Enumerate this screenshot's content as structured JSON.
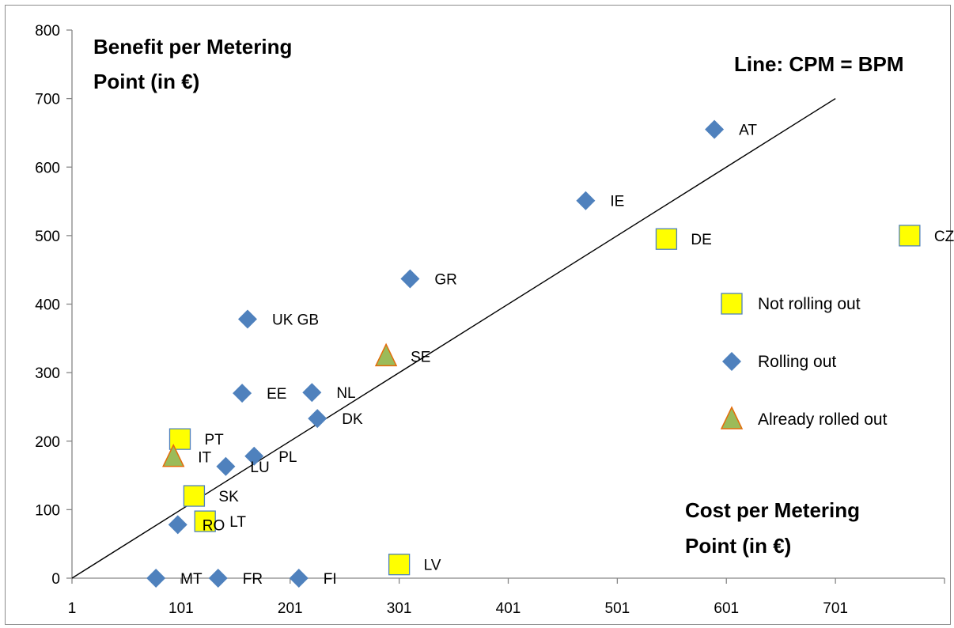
{
  "chart_data": {
    "type": "scatter",
    "y_axis_title": [
      "Benefit per Metering",
      "Point (in €)"
    ],
    "x_axis_title": [
      "Cost per Metering",
      "Point (in €)"
    ],
    "line_label": "Line: CPM = BPM",
    "x_ticks": [
      1,
      101,
      201,
      301,
      401,
      501,
      601,
      701
    ],
    "y_ticks": [
      0,
      100,
      200,
      300,
      400,
      500,
      600,
      700,
      800
    ],
    "xlim": [
      1,
      801
    ],
    "ylim": [
      0,
      800
    ],
    "reference_line": {
      "x": [
        1,
        701
      ],
      "y": [
        0,
        700
      ]
    },
    "colors": {
      "not_rolling_out": "#ffff00",
      "rolling_out": "#4f81bd",
      "already_rolled_out": "#9bbb59",
      "triangle_edge": "#e46c0a",
      "square_edge": "#4f81bd"
    },
    "legend": [
      {
        "key": "not_rolling_out",
        "label": "Not rolling out",
        "marker": "square"
      },
      {
        "key": "rolling_out",
        "label": "Rolling out",
        "marker": "diamond"
      },
      {
        "key": "already_rolled_out",
        "label": "Already rolled out",
        "marker": "triangle"
      }
    ],
    "series": [
      {
        "key": "not_rolling_out",
        "marker": "square",
        "points": [
          {
            "label": "CZ",
            "x": 769,
            "y": 500
          },
          {
            "label": "DE",
            "x": 546,
            "y": 495
          },
          {
            "label": "PT",
            "x": 100,
            "y": 203
          },
          {
            "label": "SK",
            "x": 113,
            "y": 120
          },
          {
            "label": "LT",
            "x": 123,
            "y": 83
          },
          {
            "label": "LV",
            "x": 301,
            "y": 20
          }
        ]
      },
      {
        "key": "rolling_out",
        "marker": "diamond",
        "points": [
          {
            "label": "AT",
            "x": 590,
            "y": 655
          },
          {
            "label": "IE",
            "x": 472,
            "y": 551
          },
          {
            "label": "GR",
            "x": 311,
            "y": 437
          },
          {
            "label": "UK GB",
            "x": 162,
            "y": 378
          },
          {
            "label": "EE",
            "x": 157,
            "y": 270
          },
          {
            "label": "NL",
            "x": 221,
            "y": 271
          },
          {
            "label": "DK",
            "x": 226,
            "y": 233
          },
          {
            "label": "PL",
            "x": 168,
            "y": 178
          },
          {
            "label": "LU",
            "x": 142,
            "y": 163
          },
          {
            "label": "RO",
            "x": 98,
            "y": 78
          },
          {
            "label": "MT",
            "x": 78,
            "y": 0
          },
          {
            "label": "FR",
            "x": 135,
            "y": 0
          },
          {
            "label": "FI",
            "x": 209,
            "y": 0
          }
        ]
      },
      {
        "key": "already_rolled_out",
        "marker": "triangle",
        "points": [
          {
            "label": "SE",
            "x": 289,
            "y": 324
          },
          {
            "label": "IT",
            "x": 94,
            "y": 177
          }
        ]
      }
    ]
  }
}
